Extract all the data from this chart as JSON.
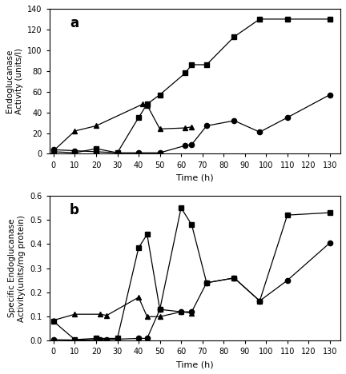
{
  "panel_a": {
    "title": "a",
    "xlabel": "Time (h)",
    "ylabel": "Endoglucanase\nActivity (units/l)",
    "xlim": [
      -2,
      135
    ],
    "ylim": [
      0,
      140
    ],
    "xticks": [
      0,
      10,
      20,
      30,
      40,
      50,
      60,
      70,
      80,
      90,
      100,
      110,
      120,
      130
    ],
    "yticks": [
      0,
      20,
      40,
      60,
      80,
      100,
      120,
      140
    ],
    "series": {
      "squares": {
        "x": [
          0,
          10,
          20,
          30,
          40,
          44,
          50,
          62,
          65,
          72,
          85,
          97,
          110,
          130
        ],
        "y": [
          2,
          1,
          5,
          1,
          35,
          48,
          57,
          78,
          86,
          86,
          113,
          130,
          130,
          130
        ],
        "marker": "s",
        "color": "black"
      },
      "triangles": {
        "x": [
          0,
          10,
          20,
          42,
          44,
          50,
          62,
          65
        ],
        "y": [
          3,
          22,
          27,
          48,
          47,
          24,
          25,
          26
        ],
        "marker": "^",
        "color": "black"
      },
      "circles": {
        "x": [
          0,
          10,
          20,
          30,
          40,
          50,
          62,
          65,
          72,
          85,
          97,
          110,
          130
        ],
        "y": [
          4,
          3,
          2,
          1,
          1,
          1,
          8,
          9,
          27,
          32,
          21,
          35,
          57
        ],
        "marker": "o",
        "color": "black"
      }
    }
  },
  "panel_b": {
    "title": "b",
    "xlabel": "Time (h)",
    "ylabel": "Specific Endoglucanase\nActivity(units/mg protein)",
    "xlim": [
      -2,
      135
    ],
    "ylim": [
      0,
      0.6
    ],
    "xticks": [
      0,
      10,
      20,
      30,
      40,
      50,
      60,
      70,
      80,
      90,
      100,
      110,
      120,
      130
    ],
    "yticks": [
      0.0,
      0.1,
      0.2,
      0.3,
      0.4,
      0.5,
      0.6
    ],
    "series": {
      "squares": {
        "x": [
          0,
          10,
          20,
          30,
          40,
          44,
          50,
          60,
          65,
          72,
          85,
          97,
          110,
          130
        ],
        "y": [
          0.08,
          0.005,
          0.01,
          0.01,
          0.385,
          0.44,
          0.13,
          0.55,
          0.48,
          0.24,
          0.26,
          0.165,
          0.52,
          0.53
        ],
        "marker": "s",
        "color": "black"
      },
      "triangles": {
        "x": [
          0,
          10,
          22,
          25,
          40,
          44,
          50,
          60,
          65
        ],
        "y": [
          0.085,
          0.11,
          0.11,
          0.105,
          0.18,
          0.1,
          0.1,
          0.12,
          0.115
        ],
        "marker": "^",
        "color": "black"
      },
      "circles": {
        "x": [
          0,
          10,
          22,
          25,
          40,
          44,
          50,
          60,
          65,
          72,
          85,
          97,
          110,
          130
        ],
        "y": [
          0.005,
          0.003,
          0.005,
          0.005,
          0.01,
          0.01,
          0.13,
          0.12,
          0.12,
          0.24,
          0.26,
          0.165,
          0.25,
          0.405
        ],
        "marker": "o",
        "color": "black"
      }
    }
  }
}
